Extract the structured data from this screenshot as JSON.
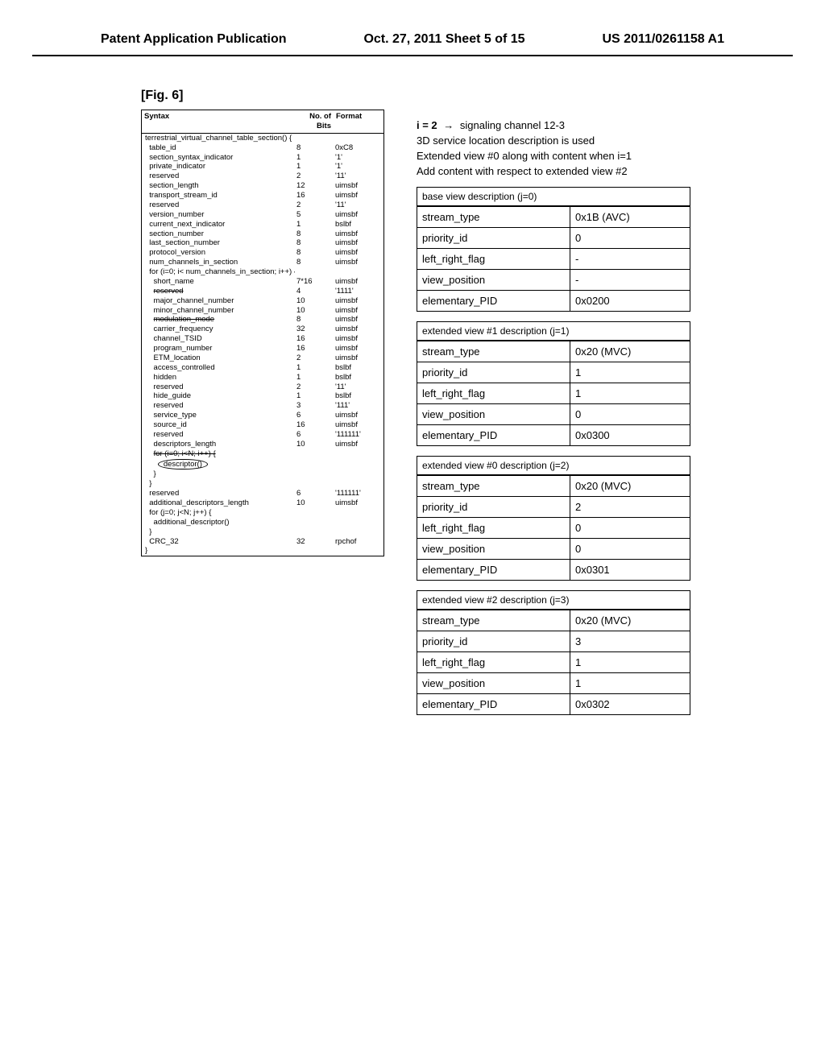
{
  "header": {
    "left": "Patent Application Publication",
    "center": "Oct. 27, 2011  Sheet 5 of 15",
    "right": "US 2011/0261158 A1"
  },
  "figure_label": "[Fig. 6]",
  "syntax": {
    "columns": {
      "c1": "Syntax",
      "c2": "No. of Bits",
      "c3": "Format"
    },
    "rows": [
      {
        "c1": "terrestrial_virtual_channel_table_section() {",
        "c2": "",
        "c3": "",
        "indent": 0
      },
      {
        "c1": "table_id",
        "c2": "8",
        "c3": "0xC8",
        "indent": 1
      },
      {
        "c1": "section_syntax_indicator",
        "c2": "1",
        "c3": "'1'",
        "indent": 1
      },
      {
        "c1": "private_indicator",
        "c2": "1",
        "c3": "'1'",
        "indent": 1
      },
      {
        "c1": "reserved",
        "c2": "2",
        "c3": "'11'",
        "indent": 1
      },
      {
        "c1": "section_length",
        "c2": "12",
        "c3": "uimsbf",
        "indent": 1
      },
      {
        "c1": "transport_stream_id",
        "c2": "16",
        "c3": "uimsbf",
        "indent": 1
      },
      {
        "c1": "reserved",
        "c2": "2",
        "c3": "'11'",
        "indent": 1
      },
      {
        "c1": "version_number",
        "c2": "5",
        "c3": "uimsbf",
        "indent": 1
      },
      {
        "c1": "current_next_indicator",
        "c2": "1",
        "c3": "bslbf",
        "indent": 1
      },
      {
        "c1": "section_number",
        "c2": "8",
        "c3": "uimsbf",
        "indent": 1
      },
      {
        "c1": "last_section_number",
        "c2": "8",
        "c3": "uimsbf",
        "indent": 1
      },
      {
        "c1": "protocol_version",
        "c2": "8",
        "c3": "uimsbf",
        "indent": 1
      },
      {
        "c1": "num_channels_in_section",
        "c2": "8",
        "c3": "uimsbf",
        "indent": 1
      },
      {
        "c1": "for (i=0; i< num_channels_in_section; i++) {",
        "c2": "",
        "c3": "",
        "indent": 1
      },
      {
        "c1": "short_name",
        "c2": "7*16",
        "c3": "uimsbf",
        "indent": 2
      },
      {
        "c1": "reserved",
        "c2": "4",
        "c3": "'1111'",
        "indent": 2,
        "strike": true
      },
      {
        "c1": "major_channel_number",
        "c2": "10",
        "c3": "uimsbf",
        "indent": 2
      },
      {
        "c1": "minor_channel_number",
        "c2": "10",
        "c3": "uimsbf",
        "indent": 2
      },
      {
        "c1": "modulation_mode",
        "c2": "8",
        "c3": "uimsbf",
        "indent": 2,
        "strike": true
      },
      {
        "c1": "carrier_frequency",
        "c2": "32",
        "c3": "uimsbf",
        "indent": 2
      },
      {
        "c1": "channel_TSID",
        "c2": "16",
        "c3": "uimsbf",
        "indent": 2
      },
      {
        "c1": "program_number",
        "c2": "16",
        "c3": "uimsbf",
        "indent": 2
      },
      {
        "c1": "ETM_location",
        "c2": "2",
        "c3": "uimsbf",
        "indent": 2
      },
      {
        "c1": "access_controlled",
        "c2": "1",
        "c3": "bslbf",
        "indent": 2
      },
      {
        "c1": "hidden",
        "c2": "1",
        "c3": "bslbf",
        "indent": 2
      },
      {
        "c1": "reserved",
        "c2": "2",
        "c3": "'11'",
        "indent": 2
      },
      {
        "c1": "hide_guide",
        "c2": "1",
        "c3": "bslbf",
        "indent": 2
      },
      {
        "c1": "reserved",
        "c2": "3",
        "c3": "'111'",
        "indent": 2
      },
      {
        "c1": "service_type",
        "c2": "6",
        "c3": "uimsbf",
        "indent": 2
      },
      {
        "c1": "source_id",
        "c2": "16",
        "c3": "uimsbf",
        "indent": 2
      },
      {
        "c1": "reserved",
        "c2": "6",
        "c3": "'111111'",
        "indent": 2
      },
      {
        "c1": "descriptors_length",
        "c2": "10",
        "c3": "uimsbf",
        "indent": 2
      },
      {
        "c1": "for (i=0; i<N; i++) {",
        "c2": "",
        "c3": "",
        "indent": 2,
        "strike": true
      },
      {
        "c1": "descriptor()",
        "c2": "",
        "c3": "",
        "indent": 3,
        "circled": true
      },
      {
        "c1": "}",
        "c2": "",
        "c3": "",
        "indent": 2
      },
      {
        "c1": "}",
        "c2": "",
        "c3": "",
        "indent": 1
      },
      {
        "c1": "reserved",
        "c2": "6",
        "c3": "'111111'",
        "indent": 1
      },
      {
        "c1": "additional_descriptors_length",
        "c2": "10",
        "c3": "uimsbf",
        "indent": 1
      },
      {
        "c1": "for (j=0; j<N; j++) {",
        "c2": "",
        "c3": "",
        "indent": 1
      },
      {
        "c1": "additional_descriptor()",
        "c2": "",
        "c3": "",
        "indent": 2
      },
      {
        "c1": "}",
        "c2": "",
        "c3": "",
        "indent": 1
      },
      {
        "c1": "CRC_32",
        "c2": "32",
        "c3": "rpchof",
        "indent": 1
      },
      {
        "c1": "}",
        "c2": "",
        "c3": "",
        "indent": 0
      }
    ]
  },
  "right": {
    "line1_a": "i = 2",
    "line1_b": "signaling channel 12-3",
    "line2": "3D service location description is used",
    "line3": "Extended view #0 along with content when i=1",
    "line4": "Add content with respect to extended view #2",
    "groups": [
      {
        "title": "base view description (j=0)",
        "rows": [
          {
            "k": "stream_type",
            "v": "0x1B (AVC)"
          },
          {
            "k": "priority_id",
            "v": "0"
          },
          {
            "k": "left_right_flag",
            "v": "-"
          },
          {
            "k": "view_position",
            "v": "-"
          },
          {
            "k": "elementary_PID",
            "v": "0x0200"
          }
        ]
      },
      {
        "title": "extended view #1 description (j=1)",
        "rows": [
          {
            "k": "stream_type",
            "v": "0x20 (MVC)"
          },
          {
            "k": "priority_id",
            "v": "1"
          },
          {
            "k": "left_right_flag",
            "v": "1"
          },
          {
            "k": "view_position",
            "v": "0"
          },
          {
            "k": "elementary_PID",
            "v": "0x0300"
          }
        ]
      },
      {
        "title": "extended view #0 description (j=2)",
        "rows": [
          {
            "k": "stream_type",
            "v": "0x20 (MVC)"
          },
          {
            "k": "priority_id",
            "v": "2"
          },
          {
            "k": "left_right_flag",
            "v": "0"
          },
          {
            "k": "view_position",
            "v": "0"
          },
          {
            "k": "elementary_PID",
            "v": "0x0301"
          }
        ]
      },
      {
        "title": "extended view #2 description (j=3)",
        "rows": [
          {
            "k": "stream_type",
            "v": "0x20 (MVC)"
          },
          {
            "k": "priority_id",
            "v": "3"
          },
          {
            "k": "left_right_flag",
            "v": "1"
          },
          {
            "k": "view_position",
            "v": "1"
          },
          {
            "k": "elementary_PID",
            "v": "0x0302"
          }
        ]
      }
    ]
  }
}
